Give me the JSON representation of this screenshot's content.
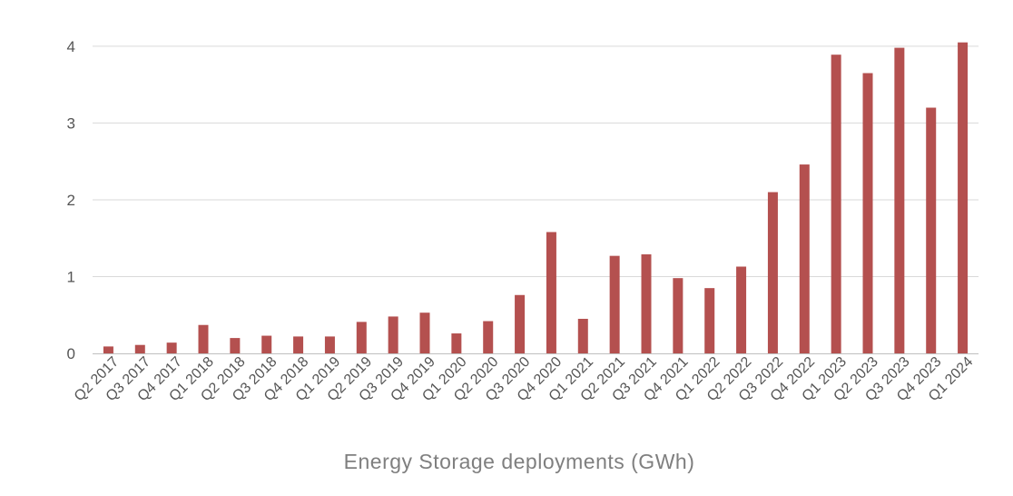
{
  "chart_data": {
    "type": "bar",
    "title": "",
    "xlabel": "Energy Storage deployments (GWh)",
    "ylabel": "",
    "ylim": [
      0,
      4.2
    ],
    "yticks": [
      0,
      1,
      2,
      3,
      4
    ],
    "grid": true,
    "colors": {
      "bar": "#B4504F",
      "grid": "#d9d9d9",
      "axis": "#bfbfbf"
    },
    "categories": [
      "Q2 2017",
      "Q3 2017",
      "Q4 2017",
      "Q1 2018",
      "Q2 2018",
      "Q3 2018",
      "Q4 2018",
      "Q1 2019",
      "Q2 2019",
      "Q3 2019",
      "Q4 2019",
      "Q1 2020",
      "Q2 2020",
      "Q3 2020",
      "Q4 2020",
      "Q1 2021",
      "Q2 2021",
      "Q3 2021",
      "Q4 2021",
      "Q1 2022",
      "Q2 2022",
      "Q3 2022",
      "Q4 2022",
      "Q1 2023",
      "Q2 2023",
      "Q3 2023",
      "Q4 2023",
      "Q1 2024"
    ],
    "values": [
      0.09,
      0.11,
      0.14,
      0.37,
      0.2,
      0.23,
      0.22,
      0.22,
      0.41,
      0.48,
      0.53,
      0.26,
      0.42,
      0.76,
      1.58,
      0.45,
      1.27,
      1.29,
      0.98,
      0.85,
      1.13,
      2.1,
      2.46,
      3.89,
      3.65,
      3.98,
      3.2,
      4.05
    ]
  }
}
